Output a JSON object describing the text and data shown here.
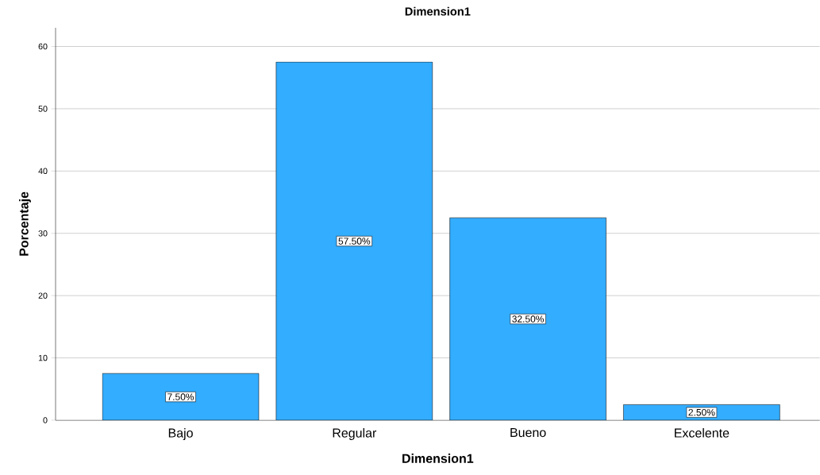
{
  "chart_data": {
    "type": "bar",
    "title": "Dimension1",
    "xlabel": "Dimension1",
    "ylabel": "Porcentaje",
    "categories": [
      "Bajo",
      "Regular",
      "Bueno",
      "Excelente"
    ],
    "values": [
      7.5,
      57.5,
      32.5,
      2.5
    ],
    "value_labels": [
      "7.50%",
      "57.50%",
      "32.50%",
      "2.50%"
    ],
    "color": "#33adff",
    "ylim": [
      0,
      63
    ],
    "yticks": [
      0,
      10,
      20,
      30,
      40,
      50,
      60
    ],
    "grid": "y"
  }
}
